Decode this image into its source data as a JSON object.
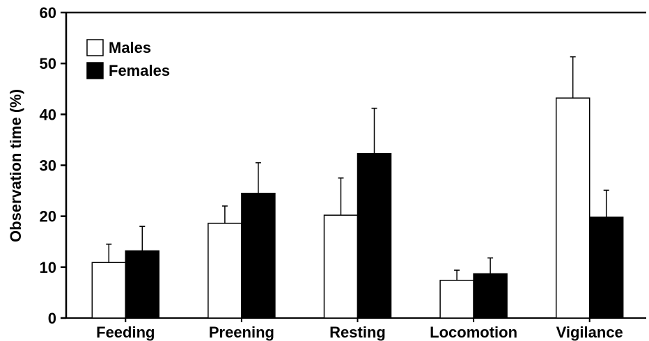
{
  "chart_data": {
    "type": "bar",
    "title": "",
    "xlabel": "",
    "ylabel": "Observation time (%)",
    "ylim": [
      0,
      60
    ],
    "yticks": [
      0,
      10,
      20,
      30,
      40,
      50,
      60
    ],
    "grid": false,
    "legend_position": "top-left",
    "categories": [
      "Feeding",
      "Preening",
      "Resting",
      "Locomotion",
      "Vigilance"
    ],
    "series": [
      {
        "name": "Males",
        "color": "#ffffff",
        "values": [
          10.9,
          18.6,
          20.2,
          7.4,
          43.2
        ],
        "error_upper": [
          14.5,
          22.0,
          27.5,
          9.4,
          51.3
        ]
      },
      {
        "name": "Females",
        "color": "#000000",
        "values": [
          13.2,
          24.5,
          32.3,
          8.7,
          19.8
        ],
        "error_upper": [
          18.0,
          30.5,
          41.2,
          11.8,
          25.1
        ]
      }
    ]
  }
}
